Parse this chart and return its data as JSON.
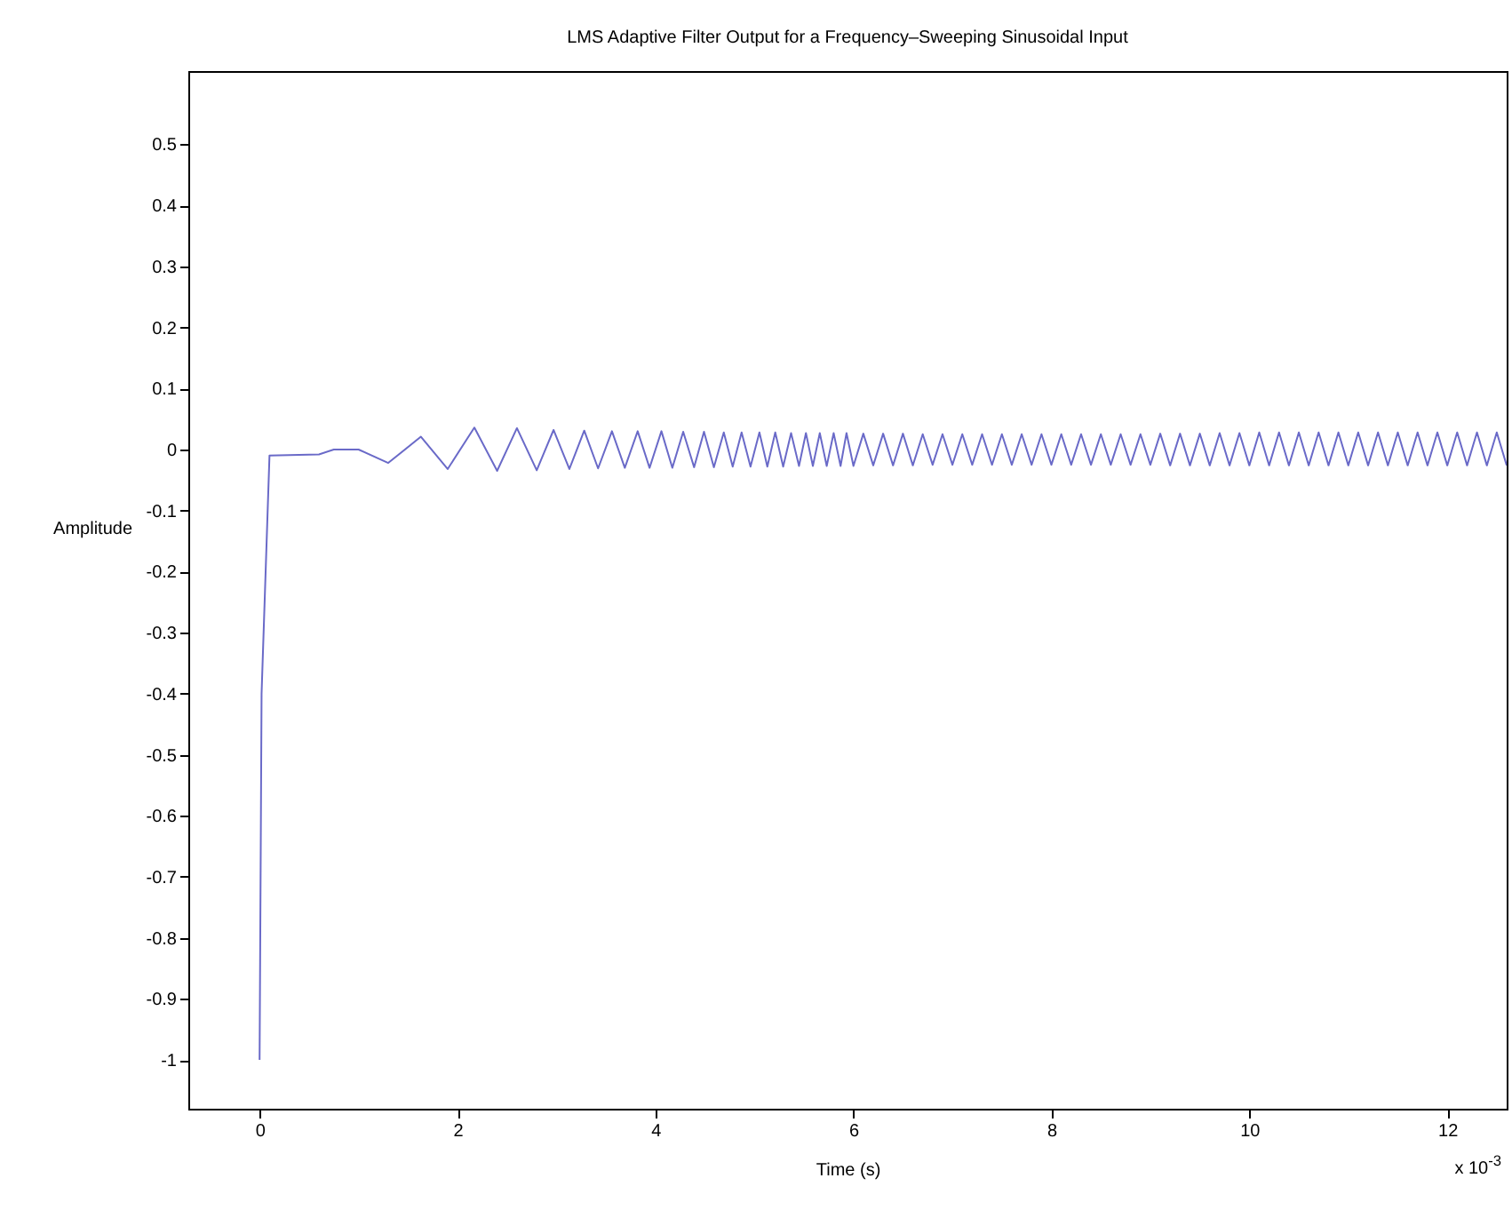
{
  "chart_data": {
    "type": "line",
    "title": "LMS Adaptive Filter Output for a Frequency–Sweeping Sinusoidal Input",
    "xlabel": "Time (s)",
    "ylabel": "Amplitude",
    "annotations": [
      "x 10$^{-3}$"
    ],
    "xlim": [
      -0.72,
      12.6
    ],
    "xticks": [
      0,
      2,
      4,
      6,
      8,
      10,
      12
    ],
    "ylim": [
      -1.08,
      0.62
    ],
    "yticks": [
      -1,
      -0.9,
      -0.8,
      -0.7,
      -0.6,
      -0.5,
      -0.4,
      -0.3,
      -0.2,
      -0.1,
      0,
      0.1,
      0.2,
      0.3,
      0.4,
      0.5
    ],
    "grid": false,
    "marker": "none",
    "line_style": "solid",
    "series": [
      {
        "color": "#6a6ac8",
        "x": [
          0,
          0.02,
          0.1,
          0.6,
          0.75,
          1.0,
          1.3,
          1.63,
          1.9,
          2.17,
          2.4,
          2.6,
          2.8,
          2.97,
          3.13,
          3.28,
          3.42,
          3.56,
          3.69,
          3.82,
          3.94,
          4.06,
          4.17,
          4.28,
          4.39,
          4.49,
          4.59,
          4.69,
          4.78,
          4.87,
          4.96,
          5.05,
          5.13,
          5.21,
          5.29,
          5.37,
          5.45,
          5.52,
          5.59,
          5.66,
          5.73,
          5.8,
          5.87,
          5.93,
          6.0,
          6.1,
          6.2,
          6.3,
          6.4,
          6.5,
          6.6,
          6.7,
          6.8,
          6.9,
          7.0,
          7.1,
          7.2,
          7.3,
          7.4,
          7.5,
          7.6,
          7.7,
          7.8,
          7.9,
          8.0,
          8.1,
          8.2,
          8.3,
          8.4,
          8.5,
          8.6,
          8.7,
          8.8,
          8.9,
          9.0,
          9.1,
          9.2,
          9.3,
          9.4,
          9.5,
          9.6,
          9.7,
          9.8,
          9.9,
          10.0,
          10.1,
          10.2,
          10.3,
          10.4,
          10.5,
          10.6,
          10.7,
          10.8,
          10.9,
          11.0,
          11.1,
          11.2,
          11.3,
          11.4,
          11.5,
          11.6,
          11.7,
          11.8,
          11.9,
          12.0,
          12.1,
          12.2,
          12.3,
          12.4,
          12.5,
          12.6
        ],
        "values": [
          -1,
          -0.4,
          -0.01,
          -0.008,
          0,
          0,
          -0.022,
          0.021,
          -0.032,
          0.036,
          -0.035,
          0.035,
          -0.034,
          0.032,
          -0.032,
          0.031,
          -0.031,
          0.03,
          -0.03,
          0.03,
          -0.03,
          0.03,
          -0.03,
          0.029,
          -0.029,
          0.029,
          -0.029,
          0.028,
          -0.028,
          0.028,
          -0.028,
          0.028,
          -0.028,
          0.028,
          -0.028,
          0.027,
          -0.027,
          0.027,
          -0.027,
          0.027,
          -0.027,
          0.027,
          -0.027,
          0.027,
          -0.027,
          0.026,
          -0.026,
          0.026,
          -0.026,
          0.026,
          -0.026,
          0.025,
          -0.025,
          0.025,
          -0.025,
          0.025,
          -0.025,
          0.025,
          -0.025,
          0.025,
          -0.025,
          0.025,
          -0.025,
          0.025,
          -0.025,
          0.025,
          -0.025,
          0.025,
          -0.025,
          0.025,
          -0.025,
          0.025,
          -0.025,
          0.025,
          -0.025,
          0.026,
          -0.026,
          0.026,
          -0.026,
          0.026,
          -0.026,
          0.027,
          -0.026,
          0.027,
          -0.026,
          0.028,
          -0.026,
          0.028,
          -0.026,
          0.028,
          -0.026,
          0.028,
          -0.026,
          0.028,
          -0.026,
          0.028,
          -0.026,
          0.028,
          -0.026,
          0.028,
          -0.026,
          0.028,
          -0.026,
          0.028,
          -0.026,
          0.028,
          -0.026,
          0.028,
          -0.026,
          0.028,
          -0.026
        ]
      }
    ]
  }
}
